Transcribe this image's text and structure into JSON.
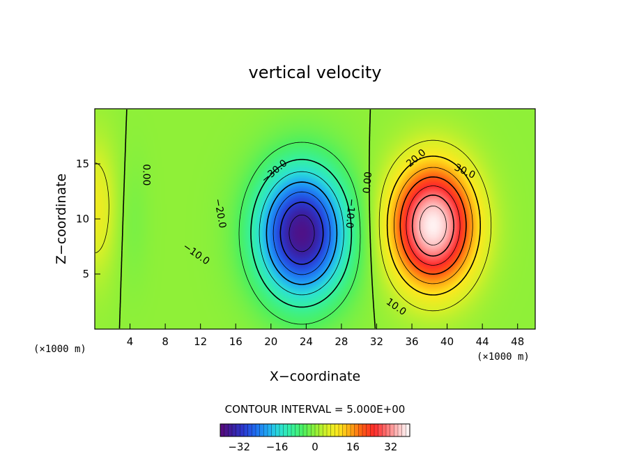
{
  "chart_data": {
    "type": "heatmap",
    "title": "vertical velocity",
    "xlabel": "X−coordinate",
    "ylabel": "Z−coordinate",
    "x_unit": "(×1000 m)",
    "x_unit_right": "(×1000 m)",
    "xlim": [
      0,
      50
    ],
    "ylim": [
      0,
      20
    ],
    "x_ticks": [
      4,
      8,
      12,
      16,
      20,
      24,
      28,
      32,
      36,
      40,
      44,
      48
    ],
    "x_tick_labels": [
      "4",
      "8",
      "12",
      "16",
      "20",
      "24",
      "28",
      "32",
      "36",
      "40",
      "44",
      "48"
    ],
    "y_ticks": [
      5,
      10,
      15
    ],
    "y_tick_labels": [
      "5",
      "10",
      "15"
    ],
    "contour_interval_text": "CONTOUR INTERVAL = 5.000E+00",
    "contour_levels": [
      -35,
      -30,
      -25,
      -20,
      -15,
      -10,
      -5,
      0,
      5,
      10,
      15,
      20,
      25,
      30,
      35
    ],
    "value_range": [
      -40,
      40
    ],
    "features": [
      {
        "name": "downdraft-core",
        "x": 23.5,
        "z": 8.7,
        "value": -38,
        "sx": 5.0,
        "sz": 5.8
      },
      {
        "name": "updraft-core",
        "x": 38.4,
        "z": 9.4,
        "value": 39,
        "sx": 4.6,
        "sz": 5.4
      },
      {
        "name": "left-edge-updraft",
        "x": 0,
        "z": 11,
        "value": 8,
        "sx": 2.6,
        "sz": 6.0
      },
      {
        "name": "left-weak-downdraft",
        "x": 4,
        "z": 10,
        "value": -2,
        "sx": 2.0,
        "sz": 6.0
      }
    ],
    "contour_labels": [
      {
        "text": "0.00",
        "x": 5.8,
        "z": 14.0,
        "angle": 90
      },
      {
        "text": "−10.0",
        "x": 11.5,
        "z": 6.8,
        "angle": 35
      },
      {
        "text": "−20.0",
        "x": 14.2,
        "z": 10.5,
        "angle": 80
      },
      {
        "text": "−30.0",
        "x": 20.4,
        "z": 14.3,
        "angle": -40
      },
      {
        "text": "−10.0",
        "x": 29.0,
        "z": 10.5,
        "angle": 95
      },
      {
        "text": "0.00",
        "x": 31.0,
        "z": 13.3,
        "angle": -85
      },
      {
        "text": "20.0",
        "x": 36.5,
        "z": 15.5,
        "angle": -40
      },
      {
        "text": "30.0",
        "x": 42.0,
        "z": 14.3,
        "angle": 25
      },
      {
        "text": "10.0",
        "x": 34.2,
        "z": 2.0,
        "angle": 35
      }
    ],
    "colorbar": {
      "ticks": [
        -32,
        -16,
        0,
        16,
        32
      ],
      "tick_labels": [
        "−32",
        "−16",
        "0",
        "16",
        "32"
      ],
      "range": [
        -40,
        40
      ]
    }
  },
  "colors": {
    "palette": [
      "#5a0a7a",
      "#3c1e9e",
      "#2a3ad2",
      "#1f6ef0",
      "#21a9f4",
      "#2ce0d6",
      "#35f0a0",
      "#4cf060",
      "#8ff038",
      "#d8f028",
      "#ffe81e",
      "#ffa814",
      "#ff5a14",
      "#ff2a2a",
      "#ff7070",
      "#ffc0c0",
      "#ffffff"
    ],
    "contour_line": "#000000"
  }
}
